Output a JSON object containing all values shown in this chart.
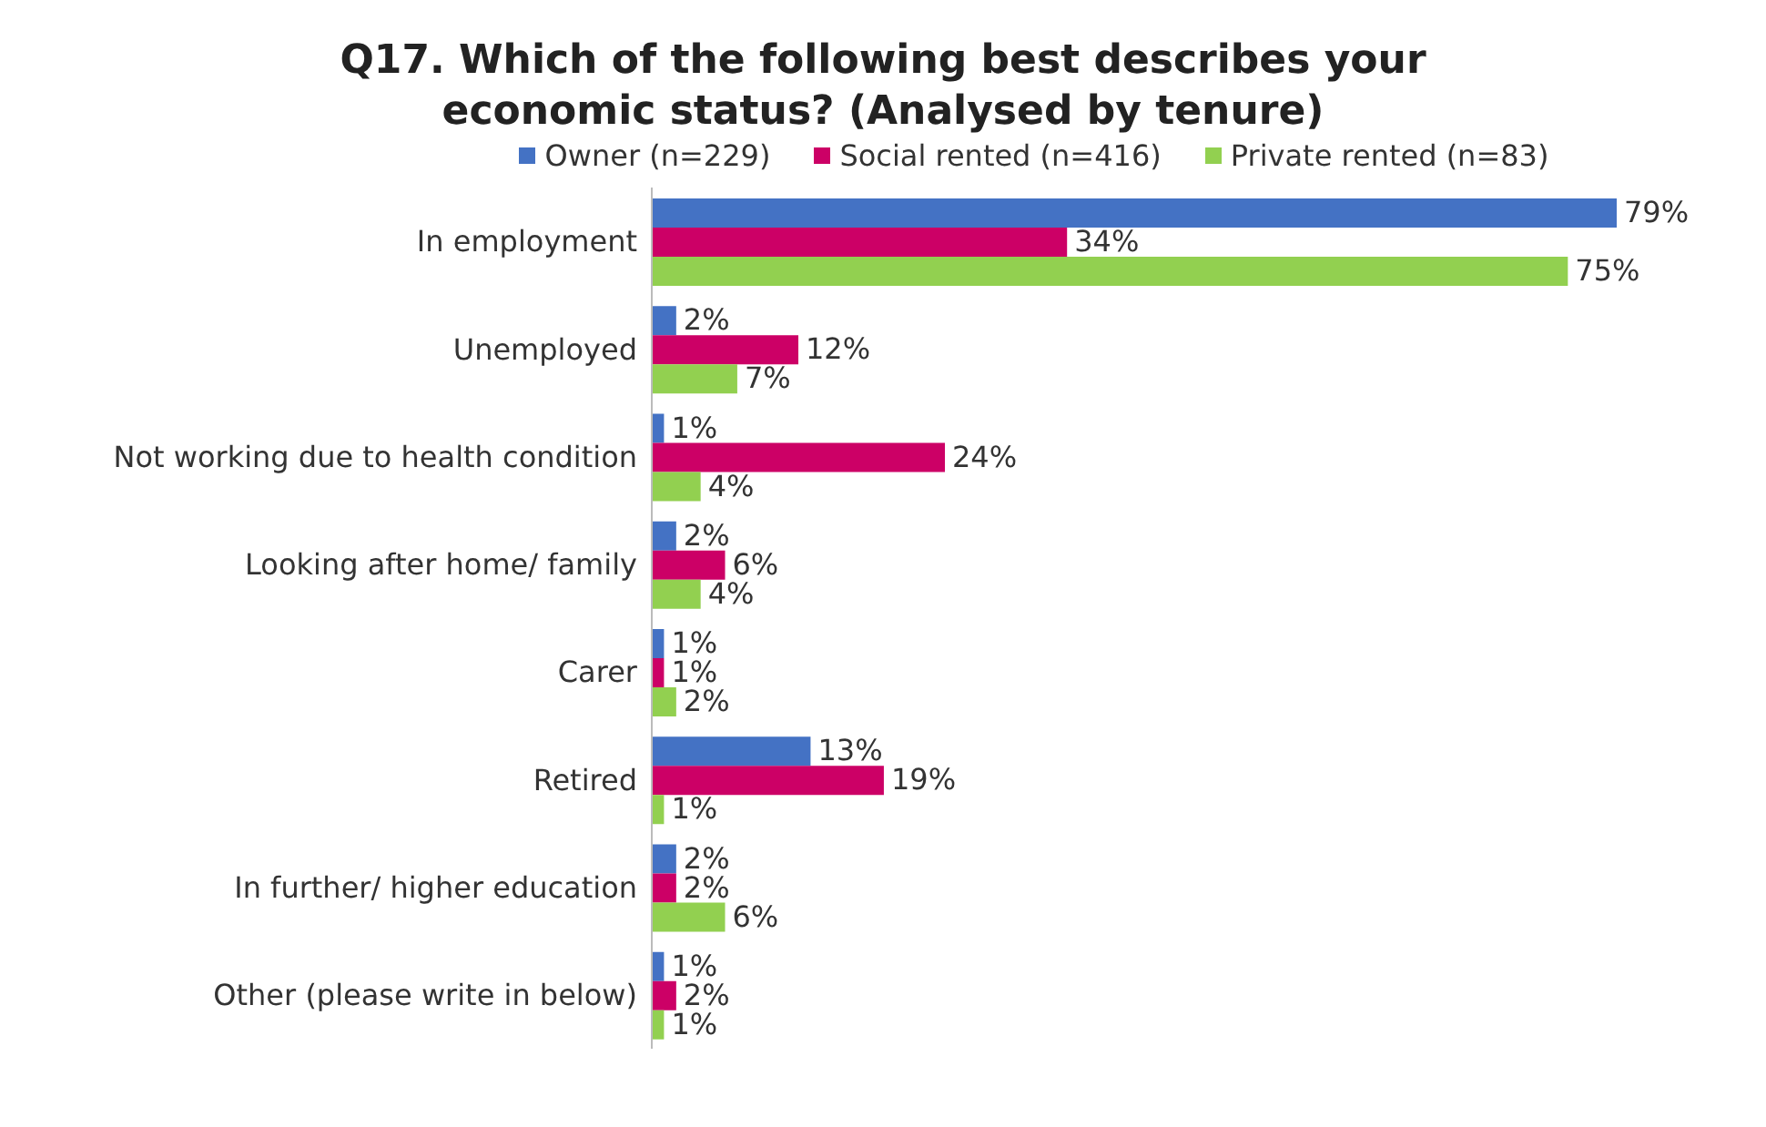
{
  "chart_data": {
    "type": "bar",
    "orientation": "horizontal",
    "title": "Q17. Which of the following best describes your economic status? (Analysed by tenure)",
    "categories": [
      "In employment",
      "Unemployed",
      "Not working due to health condition",
      "Looking after home/ family",
      "Carer",
      "Retired",
      "In further/ higher education",
      "Other (please write in below)"
    ],
    "series": [
      {
        "name": "Owner (n=229)",
        "color": "#4472c4",
        "values": [
          79,
          2,
          1,
          2,
          1,
          13,
          2,
          1
        ],
        "value_labels": [
          "79%",
          "2%",
          "1%",
          "2%",
          "1%",
          "13%",
          "2%",
          "1%"
        ]
      },
      {
        "name": "Social rented (n=416)",
        "color": "#cc0066",
        "values": [
          34,
          12,
          24,
          6,
          1,
          19,
          2,
          2
        ],
        "value_labels": [
          "34%",
          "12%",
          "24%",
          "6%",
          "1%",
          "19%",
          "2%",
          "2%"
        ]
      },
      {
        "name": "Private rented (n=83)",
        "color": "#92d050",
        "values": [
          75,
          7,
          4,
          4,
          2,
          1,
          6,
          1
        ],
        "value_labels": [
          "75%",
          "7%",
          "4%",
          "4%",
          "2%",
          "1%",
          "6%",
          "1%"
        ]
      }
    ],
    "legend": "top"
  }
}
